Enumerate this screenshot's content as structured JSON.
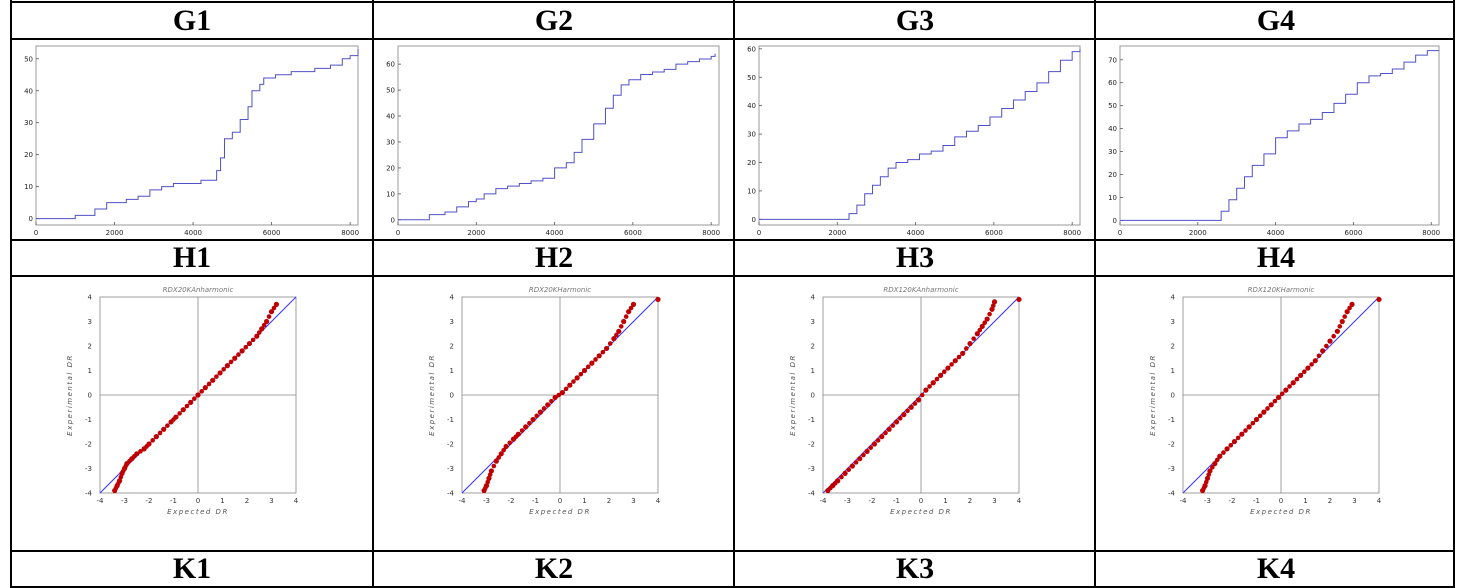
{
  "headers": {
    "row1": [
      "G1",
      "G2",
      "G3",
      "G4"
    ],
    "row2": [
      "H1",
      "H2",
      "H3",
      "H4"
    ],
    "row3": [
      "K1",
      "K2",
      "K3",
      "K4"
    ]
  },
  "colors": {
    "step_line": "#5050c8",
    "qq_line": "#3333ff",
    "qq_points": "#c00000",
    "axes": "#888888"
  },
  "chart_data": [
    {
      "type": "line",
      "panel": "G1",
      "title": "",
      "xlabel": "",
      "ylabel": "",
      "xlim": [
        0,
        8200
      ],
      "ylim": [
        -2,
        54
      ],
      "xticks": [
        "0",
        "2000",
        "4000",
        "6000",
        "8000"
      ],
      "xtick_values": [
        0,
        2000,
        4000,
        6000,
        8000
      ],
      "yticks": [
        "0",
        "10",
        "20",
        "30",
        "40",
        "50"
      ],
      "ytick_values": [
        0,
        10,
        20,
        30,
        40,
        50
      ],
      "series": [
        {
          "x": [
            0,
            900,
            1000,
            1400,
            1500,
            1700,
            1800,
            2000,
            2300,
            2600,
            2900,
            3200,
            3500,
            3800,
            4200,
            4500,
            4600,
            4700,
            4800,
            5000,
            5200,
            5400,
            5500,
            5700,
            5800,
            6100,
            6400,
            6500,
            6800,
            7100,
            7300,
            7500,
            7800,
            8000,
            8200
          ],
          "y": [
            0,
            0,
            1,
            1,
            3,
            3,
            5,
            5,
            6,
            7,
            9,
            10,
            11,
            11,
            12,
            12,
            15,
            19,
            25,
            27,
            31,
            35,
            40,
            42,
            44,
            45,
            45,
            46,
            46,
            47,
            47,
            48,
            50,
            51,
            53
          ]
        }
      ]
    },
    {
      "type": "line",
      "panel": "G2",
      "title": "",
      "xlabel": "",
      "ylabel": "",
      "xlim": [
        0,
        8200
      ],
      "ylim": [
        -2,
        67
      ],
      "xticks": [
        "0",
        "2000",
        "4000",
        "6000",
        "8000"
      ],
      "xtick_values": [
        0,
        2000,
        4000,
        6000,
        8000
      ],
      "yticks": [
        "0",
        "10",
        "20",
        "30",
        "40",
        "50",
        "60"
      ],
      "ytick_values": [
        0,
        10,
        20,
        30,
        40,
        50,
        60
      ],
      "series": [
        {
          "x": [
            0,
            400,
            800,
            1200,
            1500,
            1800,
            2000,
            2200,
            2500,
            2800,
            3100,
            3400,
            3700,
            4000,
            4300,
            4500,
            4700,
            5000,
            5300,
            5500,
            5700,
            5900,
            6200,
            6500,
            6800,
            7100,
            7400,
            7700,
            8000,
            8100
          ],
          "y": [
            0,
            0,
            2,
            3,
            5,
            7,
            8,
            10,
            12,
            13,
            14,
            15,
            16,
            20,
            22,
            26,
            31,
            37,
            43,
            48,
            52,
            54,
            56,
            57,
            58,
            60,
            61,
            62,
            63,
            64
          ]
        }
      ]
    },
    {
      "type": "line",
      "panel": "G3",
      "title": "",
      "xlabel": "",
      "ylabel": "",
      "xlim": [
        0,
        8200
      ],
      "ylim": [
        -2,
        61
      ],
      "xticks": [
        "0",
        "2000",
        "4000",
        "6000",
        "8000"
      ],
      "xtick_values": [
        0,
        2000,
        4000,
        6000,
        8000
      ],
      "yticks": [
        "0",
        "10",
        "20",
        "30",
        "40",
        "50",
        "60"
      ],
      "ytick_values": [
        0,
        10,
        20,
        30,
        40,
        50,
        60
      ],
      "series": [
        {
          "x": [
            0,
            2100,
            2300,
            2500,
            2700,
            2900,
            3100,
            3300,
            3500,
            3800,
            4100,
            4400,
            4700,
            5000,
            5300,
            5600,
            5900,
            6200,
            6500,
            6800,
            7100,
            7400,
            7700,
            8000,
            8200
          ],
          "y": [
            0,
            0,
            2,
            5,
            9,
            12,
            15,
            18,
            20,
            21,
            23,
            24,
            26,
            29,
            31,
            33,
            36,
            39,
            42,
            45,
            48,
            52,
            56,
            59,
            60
          ]
        }
      ]
    },
    {
      "type": "line",
      "panel": "G4",
      "title": "",
      "xlabel": "",
      "ylabel": "",
      "xlim": [
        0,
        8200
      ],
      "ylim": [
        -2,
        76
      ],
      "xticks": [
        "0",
        "2000",
        "4000",
        "6000",
        "8000"
      ],
      "xtick_values": [
        0,
        2000,
        4000,
        6000,
        8000
      ],
      "yticks": [
        "0",
        "10",
        "20",
        "30",
        "40",
        "50",
        "60",
        "70"
      ],
      "ytick_values": [
        0,
        10,
        20,
        30,
        40,
        50,
        60,
        70
      ],
      "series": [
        {
          "x": [
            0,
            2400,
            2600,
            2800,
            3000,
            3200,
            3400,
            3700,
            4000,
            4300,
            4600,
            4900,
            5200,
            5500,
            5800,
            6100,
            6400,
            6700,
            7000,
            7300,
            7600,
            7900,
            8200
          ],
          "y": [
            0,
            0,
            4,
            9,
            14,
            19,
            24,
            29,
            36,
            39,
            42,
            44,
            47,
            51,
            55,
            60,
            63,
            64,
            66,
            69,
            72,
            74,
            74
          ]
        }
      ]
    },
    {
      "type": "scatter",
      "panel": "H1",
      "title": "RDX20KAnharmonic",
      "xlabel": "Expected DR",
      "ylabel": "Experimental DR",
      "xlim": [
        -4,
        4
      ],
      "ylim": [
        -4,
        4
      ],
      "xticks": [
        "-4",
        "-3",
        "-2",
        "-1",
        "0",
        "1",
        "2",
        "3",
        "4"
      ],
      "yticks": [
        "-4",
        "-3",
        "-2",
        "-1",
        "0",
        "1",
        "2",
        "3",
        "4"
      ],
      "series": [
        {
          "x": [
            -3.4,
            -3.3,
            -3.2,
            -3.1,
            -3.0,
            -2.9,
            -2.7,
            -2.5,
            -2.2,
            -2.0,
            -1.7,
            -1.4,
            -1.1,
            -0.9,
            -0.6,
            -0.3,
            0.0,
            0.3,
            0.6,
            0.9,
            1.2,
            1.5,
            1.8,
            2.1,
            2.4,
            2.6,
            2.8,
            3.0,
            3.2
          ],
          "y": [
            -3.9,
            -3.7,
            -3.5,
            -3.2,
            -3.0,
            -2.8,
            -2.6,
            -2.4,
            -2.2,
            -2.0,
            -1.7,
            -1.4,
            -1.1,
            -0.9,
            -0.6,
            -0.3,
            0.0,
            0.3,
            0.6,
            0.9,
            1.2,
            1.5,
            1.8,
            2.1,
            2.4,
            2.7,
            3.0,
            3.4,
            3.7
          ]
        }
      ]
    },
    {
      "type": "scatter",
      "panel": "H2",
      "title": "RDX20KHarmonic",
      "xlabel": "Expected DR",
      "ylabel": "Experimental DR",
      "xlim": [
        -4,
        4
      ],
      "ylim": [
        -4,
        4
      ],
      "xticks": [
        "-4",
        "-3",
        "-2",
        "-1",
        "0",
        "1",
        "2",
        "3",
        "4"
      ],
      "yticks": [
        "-4",
        "-3",
        "-2",
        "-1",
        "0",
        "1",
        "2",
        "3",
        "4"
      ],
      "series": [
        {
          "x": [
            -3.1,
            -3.0,
            -2.9,
            -2.8,
            -2.6,
            -2.4,
            -2.2,
            -1.9,
            -1.7,
            -1.4,
            -1.1,
            -0.8,
            -0.5,
            -0.2,
            0.1,
            0.4,
            0.7,
            1.0,
            1.3,
            1.6,
            1.9,
            2.2,
            2.4,
            2.6,
            2.8,
            3.0,
            4.0
          ],
          "y": [
            -3.9,
            -3.7,
            -3.4,
            -3.1,
            -2.7,
            -2.4,
            -2.1,
            -1.8,
            -1.6,
            -1.3,
            -1.0,
            -0.7,
            -0.4,
            -0.1,
            0.1,
            0.4,
            0.7,
            1.0,
            1.3,
            1.6,
            1.9,
            2.3,
            2.6,
            3.0,
            3.4,
            3.7,
            3.9
          ]
        }
      ]
    },
    {
      "type": "scatter",
      "panel": "H3",
      "title": "RDX120KAnharmonic",
      "xlabel": "Expected DR",
      "ylabel": "Experimental DR",
      "xlim": [
        -4,
        4
      ],
      "ylim": [
        -4,
        4
      ],
      "xticks": [
        "-4",
        "-3",
        "-2",
        "-1",
        "0",
        "1",
        "2",
        "3",
        "4"
      ],
      "yticks": [
        "-4",
        "-3",
        "-2",
        "-1",
        "0",
        "1",
        "2",
        "3",
        "4"
      ],
      "series": [
        {
          "x": [
            -3.8,
            -3.6,
            -3.4,
            -3.1,
            -2.8,
            -2.5,
            -2.2,
            -1.9,
            -1.6,
            -1.3,
            -1.0,
            -0.7,
            -0.4,
            -0.1,
            0.2,
            0.5,
            0.8,
            1.1,
            1.4,
            1.7,
            2.0,
            2.3,
            2.5,
            2.7,
            2.9,
            3.0,
            4.0
          ],
          "y": [
            -3.9,
            -3.7,
            -3.5,
            -3.2,
            -2.9,
            -2.6,
            -2.3,
            -2.0,
            -1.7,
            -1.4,
            -1.1,
            -0.8,
            -0.5,
            -0.2,
            0.2,
            0.5,
            0.8,
            1.1,
            1.4,
            1.7,
            2.1,
            2.5,
            2.8,
            3.1,
            3.5,
            3.8,
            3.9
          ]
        }
      ]
    },
    {
      "type": "scatter",
      "panel": "H4",
      "title": "RDX120KHarmonic",
      "xlabel": "Expected DR",
      "ylabel": "Experimental DR",
      "xlim": [
        -4,
        4
      ],
      "ylim": [
        -4,
        4
      ],
      "xticks": [
        "-4",
        "-3",
        "-2",
        "-1",
        "0",
        "1",
        "2",
        "3",
        "4"
      ],
      "yticks": [
        "-4",
        "-3",
        "-2",
        "-1",
        "0",
        "1",
        "2",
        "3",
        "4"
      ],
      "series": [
        {
          "x": [
            -3.2,
            -3.1,
            -3.0,
            -2.9,
            -2.7,
            -2.5,
            -2.2,
            -1.9,
            -1.6,
            -1.3,
            -1.0,
            -0.7,
            -0.4,
            -0.1,
            0.2,
            0.5,
            0.8,
            1.1,
            1.4,
            1.7,
            2.0,
            2.3,
            2.5,
            2.7,
            2.9,
            4.0
          ],
          "y": [
            -3.9,
            -3.7,
            -3.4,
            -3.1,
            -2.8,
            -2.5,
            -2.2,
            -1.9,
            -1.6,
            -1.3,
            -1.0,
            -0.7,
            -0.4,
            -0.1,
            0.2,
            0.5,
            0.8,
            1.1,
            1.4,
            1.8,
            2.2,
            2.6,
            3.0,
            3.4,
            3.7,
            3.9
          ]
        }
      ]
    }
  ]
}
